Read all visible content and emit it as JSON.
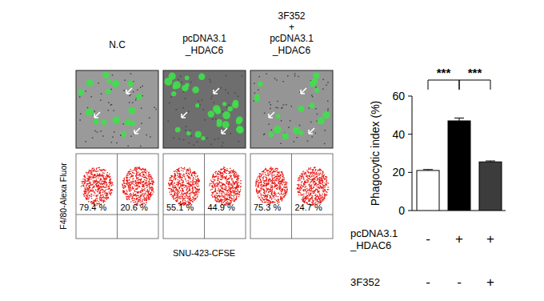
{
  "panels": {
    "titles": [
      [
        "N.C"
      ],
      [
        "pcDNA3.1",
        "_HDAC6"
      ],
      [
        "3F352",
        "+",
        "pcDNA3.1",
        "_HDAC6"
      ]
    ],
    "flow_y_label": "F4/80-Alexa Fluor",
    "flow_x_label": "SNU-423-CFSE",
    "flow_percentages": [
      [
        "79.4 %",
        "20.6 %"
      ],
      [
        "55.1 %",
        "44.9 %"
      ],
      [
        "75.3 %",
        "24.7 %"
      ]
    ]
  },
  "chart_data": {
    "type": "bar",
    "categories": [
      null,
      null,
      null
    ],
    "values": [
      21,
      47,
      25.5
    ],
    "errors": [
      0.5,
      1.5,
      0.5
    ],
    "colors": [
      "#ffffff",
      "#000000",
      "#3c3c3c"
    ],
    "y_label": "Phagocytic index (%)",
    "ylim": [
      0,
      60
    ],
    "yticks": [
      0,
      20,
      40,
      60
    ],
    "significance": [
      {
        "text": "***",
        "between": [
          0,
          1
        ]
      },
      {
        "text": "***",
        "between": [
          1,
          2
        ]
      }
    ],
    "conditions": [
      {
        "label": [
          "pcDNA3.1",
          "_HDAC6"
        ],
        "values": [
          "-",
          "+",
          "+"
        ]
      },
      {
        "label": [
          "3F352"
        ],
        "values": [
          "-",
          "-",
          "+"
        ]
      }
    ]
  }
}
